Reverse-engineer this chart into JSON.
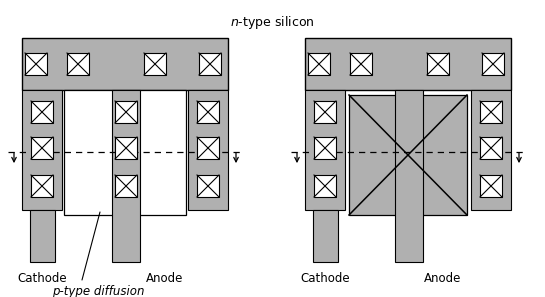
{
  "bg_color": "#ffffff",
  "gray": "#b0b0b0",
  "white": "#ffffff",
  "black": "#000000",
  "title": "$n$-type silicon",
  "label_cathode1": "Cathode",
  "label_anode1": "Anode",
  "label_cathode2": "Cathode",
  "label_anode2": "Anode",
  "label_p_type": "p-type diffusion",
  "figw": 5.45,
  "figh": 2.97,
  "dpi": 100
}
